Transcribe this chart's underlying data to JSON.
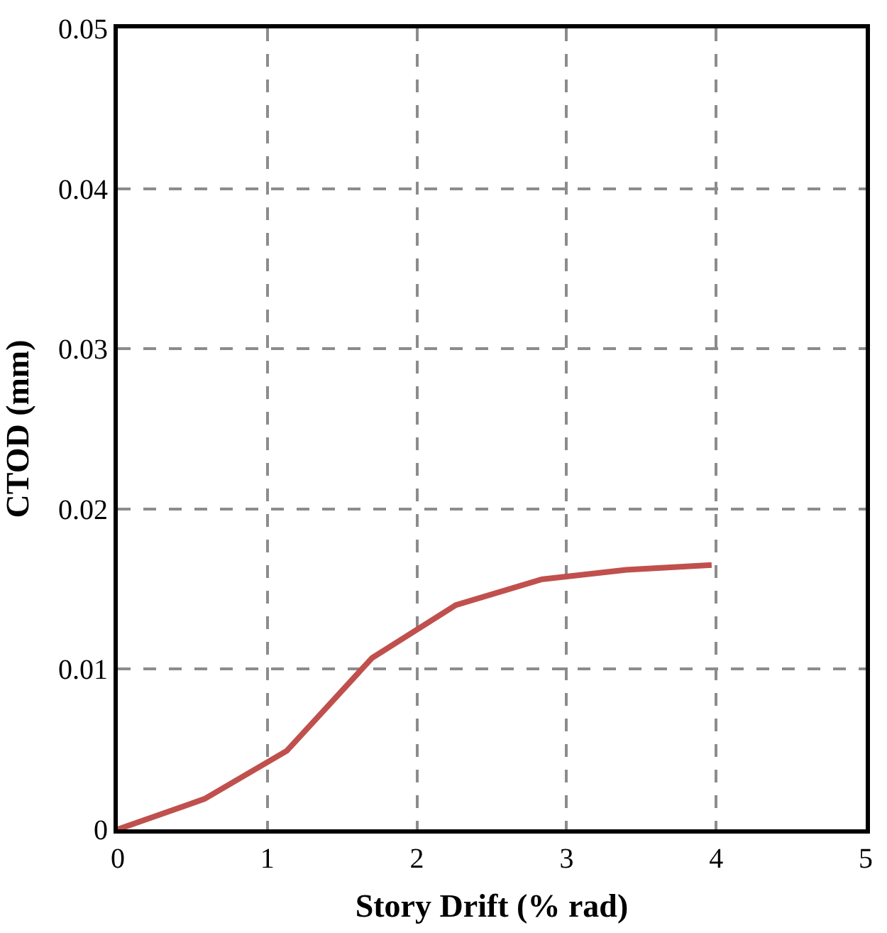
{
  "chart_data": {
    "type": "line",
    "xlabel": "Story Drift (% rad)",
    "ylabel": "CTOD (mm)",
    "x": [
      0,
      0.58,
      1.13,
      1.7,
      2.26,
      2.83,
      3.4,
      3.97
    ],
    "series": [
      {
        "color": "#c0504d",
        "values": [
          0,
          0.0019,
          0.0049,
          0.0107,
          0.014,
          0.0156,
          0.0162,
          0.0165
        ]
      }
    ],
    "xlim": [
      0,
      5
    ],
    "xticks": [
      0,
      1,
      2,
      3,
      4,
      5
    ],
    "ylim": [
      0,
      0.05
    ],
    "yticks": [
      0,
      0.01,
      0.02,
      0.03,
      0.04,
      0.05
    ],
    "grid": true,
    "marker": "none",
    "line_style": "solid"
  }
}
